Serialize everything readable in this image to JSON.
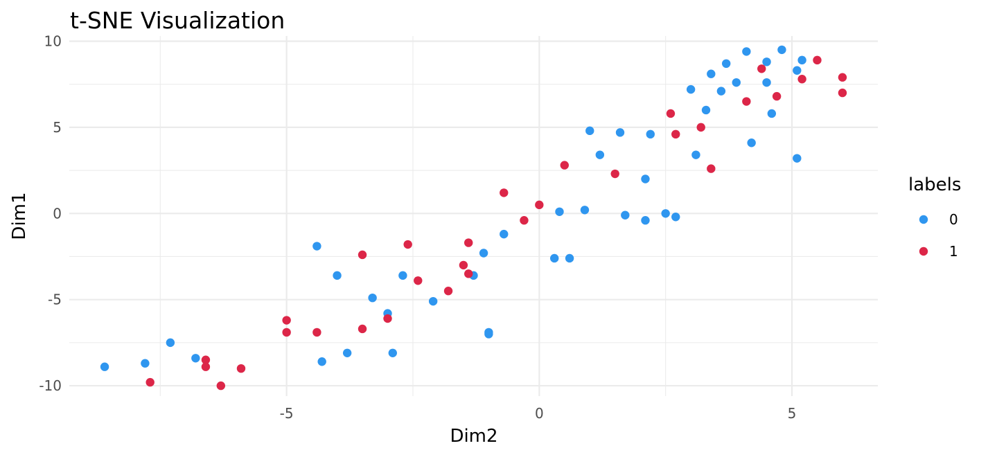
{
  "chart_data": {
    "type": "scatter",
    "title": "t-SNE Visualization",
    "xlabel": "Dim2",
    "ylabel": "Dim1",
    "xlim": [
      -9.3,
      6.7
    ],
    "ylim": [
      -10.6,
      10.3
    ],
    "x_ticks": [
      -5,
      0,
      5
    ],
    "y_ticks": [
      -10,
      -5,
      0,
      5,
      10
    ],
    "x_tick_labels": [
      "-5",
      "0",
      "5"
    ],
    "y_tick_labels": [
      "-10",
      "-5",
      "0",
      "5",
      "10"
    ],
    "grid": true,
    "legend": {
      "title": "labels",
      "position": "right"
    },
    "series": [
      {
        "name": "0",
        "color": "#2f96ef",
        "points": [
          [
            -8.6,
            -8.9
          ],
          [
            -7.8,
            -8.7
          ],
          [
            -7.3,
            -7.5
          ],
          [
            -6.8,
            -8.4
          ],
          [
            -4.4,
            -1.9
          ],
          [
            -4.0,
            -3.6
          ],
          [
            -4.3,
            -8.6
          ],
          [
            -3.8,
            -8.1
          ],
          [
            -3.3,
            -4.9
          ],
          [
            -3.0,
            -5.8
          ],
          [
            -2.9,
            -8.1
          ],
          [
            -2.7,
            -3.6
          ],
          [
            -2.1,
            -5.1
          ],
          [
            -1.3,
            -3.6
          ],
          [
            -1.1,
            -2.3
          ],
          [
            -1.0,
            -6.9
          ],
          [
            -1.0,
            -7.0
          ],
          [
            -0.7,
            -1.2
          ],
          [
            0.3,
            -2.6
          ],
          [
            0.4,
            0.1
          ],
          [
            0.6,
            -2.6
          ],
          [
            0.9,
            0.2
          ],
          [
            1.0,
            4.8
          ],
          [
            1.2,
            3.4
          ],
          [
            1.6,
            4.7
          ],
          [
            1.7,
            -0.1
          ],
          [
            2.1,
            2.0
          ],
          [
            2.1,
            -0.4
          ],
          [
            2.2,
            4.6
          ],
          [
            2.5,
            0.0
          ],
          [
            2.7,
            -0.2
          ],
          [
            3.0,
            7.2
          ],
          [
            3.1,
            3.4
          ],
          [
            3.3,
            6.0
          ],
          [
            3.4,
            8.1
          ],
          [
            3.6,
            7.1
          ],
          [
            3.7,
            8.7
          ],
          [
            3.9,
            7.6
          ],
          [
            4.1,
            9.4
          ],
          [
            4.2,
            4.1
          ],
          [
            4.5,
            7.6
          ],
          [
            4.5,
            8.8
          ],
          [
            4.6,
            5.8
          ],
          [
            4.8,
            9.5
          ],
          [
            5.1,
            8.3
          ],
          [
            5.1,
            3.2
          ],
          [
            5.2,
            8.9
          ]
        ]
      },
      {
        "name": "1",
        "color": "#dc2648",
        "points": [
          [
            -7.7,
            -9.8
          ],
          [
            -6.6,
            -8.5
          ],
          [
            -6.6,
            -8.9
          ],
          [
            -6.3,
            -10.0
          ],
          [
            -5.9,
            -9.0
          ],
          [
            -5.0,
            -6.2
          ],
          [
            -5.0,
            -6.9
          ],
          [
            -4.4,
            -6.9
          ],
          [
            -3.5,
            -2.4
          ],
          [
            -3.5,
            -6.7
          ],
          [
            -3.0,
            -6.1
          ],
          [
            -2.6,
            -1.8
          ],
          [
            -2.4,
            -3.9
          ],
          [
            -1.8,
            -4.5
          ],
          [
            -1.5,
            -3.0
          ],
          [
            -1.4,
            -1.7
          ],
          [
            -1.4,
            -3.5
          ],
          [
            -0.7,
            1.2
          ],
          [
            -0.3,
            -0.4
          ],
          [
            0.0,
            0.5
          ],
          [
            0.5,
            2.8
          ],
          [
            1.5,
            2.3
          ],
          [
            2.6,
            5.8
          ],
          [
            2.7,
            4.6
          ],
          [
            3.2,
            5.0
          ],
          [
            3.4,
            2.6
          ],
          [
            4.1,
            6.5
          ],
          [
            4.4,
            8.4
          ],
          [
            4.7,
            6.8
          ],
          [
            5.2,
            7.8
          ],
          [
            5.5,
            8.9
          ],
          [
            6.0,
            7.0
          ],
          [
            6.0,
            7.9
          ]
        ]
      }
    ]
  }
}
